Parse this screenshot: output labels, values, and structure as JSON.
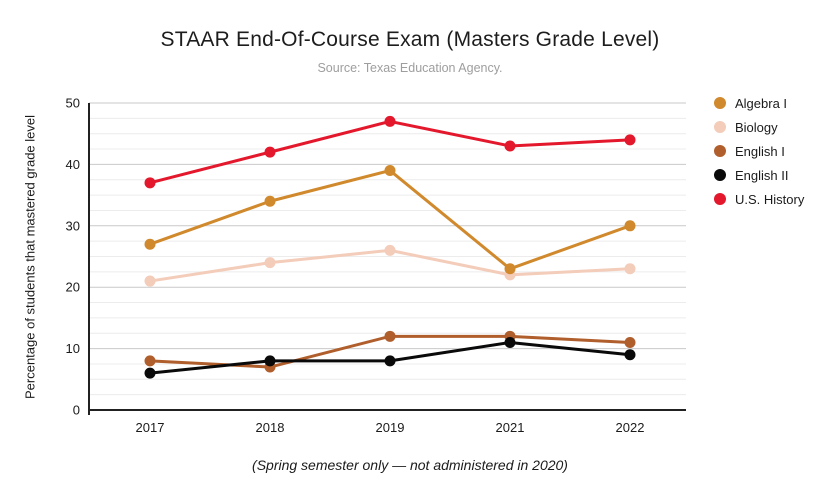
{
  "title": "STAAR End-Of-Course Exam (Masters Grade Level)",
  "subtitle": "Source: Texas Education Agency.",
  "footnote": "(Spring semester only — not administered in 2020)",
  "chart_data": {
    "type": "line",
    "title": "STAAR End-Of-Course Exam (Masters Grade Level)",
    "subtitle": "Source: Texas Education Agency.",
    "categories": [
      "2017",
      "2018",
      "2019",
      "2021",
      "2022"
    ],
    "series": [
      {
        "name": "Algebra I",
        "color": "#D0892C",
        "values": [
          27,
          34,
          39,
          23,
          30
        ]
      },
      {
        "name": "Biology",
        "color": "#F3CCBA",
        "values": [
          21,
          24,
          26,
          22,
          23
        ]
      },
      {
        "name": "English I",
        "color": "#B05E2C",
        "values": [
          8,
          7,
          12,
          12,
          11
        ]
      },
      {
        "name": "English II",
        "color": "#0A0A0A",
        "values": [
          6,
          8,
          8,
          11,
          9
        ]
      },
      {
        "name": "U.S. History",
        "color": "#E4182C",
        "values": [
          37,
          42,
          47,
          43,
          44
        ]
      }
    ],
    "xlabel": "",
    "ylabel": "Percentage of students that mastered grade level",
    "ylim": [
      0,
      50
    ],
    "yticks": [
      0,
      10,
      20,
      30,
      40,
      50
    ],
    "minor_gridline_step": 2.5,
    "grid": true,
    "legend_position": "right",
    "annotation": "(Spring semester only — not administered in 2020)",
    "colors": {
      "major_gridline": "#c9c9c9",
      "minor_gridline": "#ececec",
      "axis": "#212121",
      "tick_label": "#1b1b1b"
    }
  }
}
